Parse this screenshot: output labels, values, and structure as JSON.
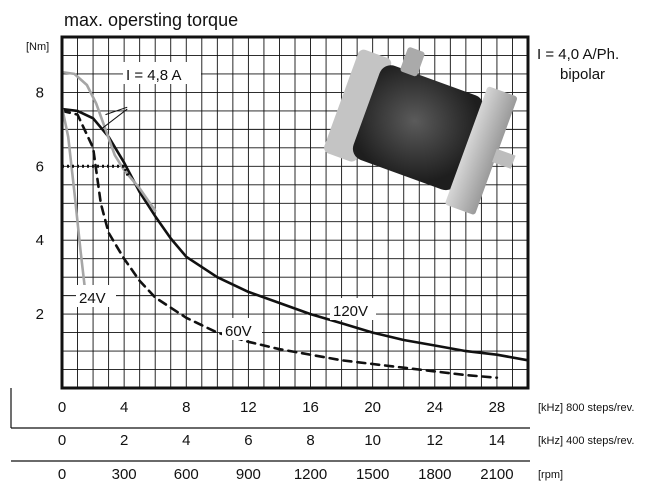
{
  "chart_data": {
    "type": "line",
    "title": "max. opersting torque",
    "ylabel": "[Nm]",
    "ylim": [
      0,
      9.5
    ],
    "xlim": [
      0,
      30
    ],
    "grid": true,
    "y_ticks": [
      "2",
      "4",
      "6",
      "8"
    ],
    "y_tick_values": [
      2,
      4,
      6,
      8
    ],
    "x_axes": [
      {
        "unit": "[kHz] 800 steps/rev.",
        "ticks": [
          "0",
          "4",
          "8",
          "12",
          "16",
          "20",
          "24",
          "28"
        ],
        "values": [
          0,
          4,
          8,
          12,
          16,
          20,
          24,
          28
        ]
      },
      {
        "unit": "[kHz] 400 steps/rev.",
        "ticks": [
          "0",
          "2",
          "4",
          "6",
          "8",
          "10",
          "12",
          "14"
        ],
        "values": [
          0,
          2,
          4,
          6,
          8,
          10,
          12,
          14
        ]
      },
      {
        "unit": "[rpm]",
        "ticks": [
          "0",
          "300",
          "600",
          "900",
          "1200",
          "1500",
          "1800",
          "2100"
        ],
        "values": [
          0,
          300,
          600,
          900,
          1200,
          1500,
          1800,
          2100
        ]
      }
    ],
    "annotations": {
      "spec_line1": "I = 4,0 A/Ph.",
      "spec_line2": "bipolar",
      "current_label": "I = 4,8 A"
    },
    "series": [
      {
        "name": "120V",
        "style": "solid",
        "color": "#111111",
        "x": [
          0,
          1,
          2,
          3,
          4,
          5,
          6,
          7,
          8,
          10,
          12,
          14,
          16,
          18,
          20,
          22,
          24,
          26,
          28,
          30
        ],
        "y": [
          7.55,
          7.5,
          7.3,
          6.8,
          6.1,
          5.3,
          4.65,
          4.05,
          3.55,
          3.0,
          2.6,
          2.3,
          2.0,
          1.75,
          1.5,
          1.3,
          1.15,
          1.0,
          0.9,
          0.75
        ]
      },
      {
        "name": "60V",
        "style": "dashed",
        "color": "#111111",
        "x": [
          0,
          1,
          2,
          2.5,
          3,
          4,
          5,
          6,
          8,
          10,
          12,
          14,
          16,
          18,
          20,
          22,
          24,
          26,
          28
        ],
        "y": [
          7.5,
          7.4,
          6.5,
          5.0,
          4.2,
          3.5,
          2.9,
          2.45,
          1.9,
          1.5,
          1.25,
          1.05,
          0.9,
          0.75,
          0.65,
          0.55,
          0.45,
          0.35,
          0.28
        ]
      },
      {
        "name": "24V",
        "style": "solid",
        "color": "#a6a6a6",
        "x": [
          0,
          0.4,
          0.8,
          1.2,
          1.5
        ],
        "y": [
          7.6,
          6.8,
          5.3,
          3.7,
          2.6
        ]
      },
      {
        "name": "I = 4,8 A",
        "style": "solid",
        "color": "#a6a6a6",
        "x": [
          0,
          0.8,
          1.6,
          2.2,
          2.8,
          3.4,
          4,
          5,
          6
        ],
        "y": [
          8.55,
          8.5,
          8.2,
          7.7,
          7.0,
          6.3,
          5.9,
          5.4,
          4.8
        ]
      },
      {
        "name": "",
        "style": "dotted",
        "color": "#111111",
        "x": [
          0,
          2,
          4,
          4.3
        ],
        "y": [
          6.0,
          6.0,
          6.0,
          5.7
        ]
      }
    ]
  }
}
